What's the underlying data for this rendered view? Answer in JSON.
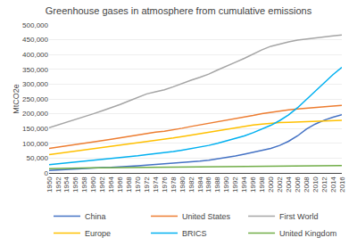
{
  "chart_data": {
    "type": "line",
    "title": "Greenhouse gases in atmosphere from cumulative emissions",
    "ylabel": "MtCO2e",
    "x": [
      1950,
      1952,
      1954,
      1956,
      1958,
      1960,
      1962,
      1964,
      1966,
      1968,
      1970,
      1972,
      1974,
      1976,
      1978,
      1980,
      1982,
      1984,
      1986,
      1988,
      1990,
      1992,
      1994,
      1996,
      1998,
      2000,
      2002,
      2004,
      2006,
      2008,
      2010,
      2012,
      2014,
      2016
    ],
    "series": [
      {
        "name": "China",
        "color": "#4472C4",
        "values": [
          8000,
          10000,
          11000,
          13000,
          14000,
          16000,
          18000,
          19000,
          20000,
          22000,
          24000,
          26000,
          28000,
          30000,
          33000,
          36000,
          38000,
          40000,
          43000,
          47000,
          52000,
          57000,
          63000,
          70000,
          76000,
          83000,
          93000,
          107000,
          125000,
          148000,
          165000,
          178000,
          188000,
          197000
        ]
      },
      {
        "name": "United States",
        "color": "#ED7D31",
        "values": [
          83000,
          87000,
          91000,
          96000,
          99000,
          104000,
          109000,
          114000,
          119000,
          124000,
          130000,
          135000,
          138000,
          141000,
          145000,
          151000,
          157000,
          162000,
          167000,
          173000,
          179000,
          183000,
          188000,
          194000,
          200000,
          205000,
          210000,
          213000,
          216000,
          219000,
          221000,
          224000,
          226000,
          228000
        ]
      },
      {
        "name": "First World",
        "color": "#A5A5A5",
        "values": [
          153000,
          162000,
          171000,
          181000,
          190000,
          200000,
          210000,
          220000,
          231000,
          243000,
          256000,
          267000,
          274000,
          281000,
          291000,
          303000,
          313000,
          323000,
          334000,
          348000,
          362000,
          374000,
          387000,
          402000,
          416000,
          428000,
          436000,
          443000,
          449000,
          453000,
          456000,
          459000,
          463000,
          466000
        ]
      },
      {
        "name": "Europe",
        "color": "#FFC000",
        "values": [
          62000,
          66000,
          69000,
          73000,
          77000,
          81000,
          85000,
          88000,
          92000,
          97000,
          102000,
          106000,
          109000,
          113000,
          118000,
          123000,
          128000,
          132000,
          137000,
          143000,
          149000,
          153000,
          157000,
          162000,
          165000,
          168000,
          170000,
          171000,
          172000,
          174000,
          175000,
          176000,
          177000,
          178000
        ]
      },
      {
        "name": "BRICS",
        "color": "#00B0F0",
        "values": [
          28000,
          31000,
          33000,
          36000,
          38000,
          41000,
          44000,
          47000,
          50000,
          54000,
          58000,
          62000,
          65000,
          68000,
          72000,
          77000,
          82000,
          87000,
          93000,
          100000,
          108000,
          116000,
          125000,
          136000,
          148000,
          161000,
          177000,
          196000,
          220000,
          248000,
          275000,
          305000,
          332000,
          357000
        ]
      },
      {
        "name": "United Kingdom",
        "color": "#70AD47",
        "values": [
          14000,
          15000,
          15500,
          16000,
          16500,
          17000,
          17500,
          17800,
          18000,
          18500,
          19000,
          19500,
          19800,
          20000,
          20300,
          20600,
          21000,
          21200,
          21400,
          21700,
          22000,
          22200,
          22500,
          22700,
          22900,
          23100,
          23300,
          23500,
          23700,
          23900,
          24000,
          24200,
          24500,
          24800
        ]
      }
    ],
    "xlim": [
      1950,
      2016
    ],
    "xticks": [
      1950,
      1952,
      1954,
      1956,
      1958,
      1960,
      1962,
      1964,
      1966,
      1968,
      1970,
      1972,
      1974,
      1976,
      1978,
      1980,
      1982,
      1984,
      1986,
      1988,
      1990,
      1992,
      1994,
      1996,
      1998,
      2000,
      2002,
      2004,
      2006,
      2008,
      2010,
      2012,
      2014,
      2016
    ],
    "ylim": [
      0,
      500000
    ],
    "yticks": [
      0,
      {
        "value": 50000,
        "label": "50,000"
      },
      {
        "value": 100000,
        "label": "100,000"
      },
      {
        "value": 150000,
        "label": "150,000"
      },
      {
        "value": 200000,
        "label": "200,000"
      },
      {
        "value": 250000,
        "label": "250,000"
      },
      {
        "value": 300000,
        "label": "300,000"
      },
      {
        "value": 350000,
        "label": "350,000"
      },
      {
        "value": 400000,
        "label": "400,000"
      },
      {
        "value": 450000,
        "label": "450,000"
      },
      {
        "value": 500000,
        "label": "500,000"
      }
    ],
    "grid": true,
    "legend": "bottom"
  }
}
